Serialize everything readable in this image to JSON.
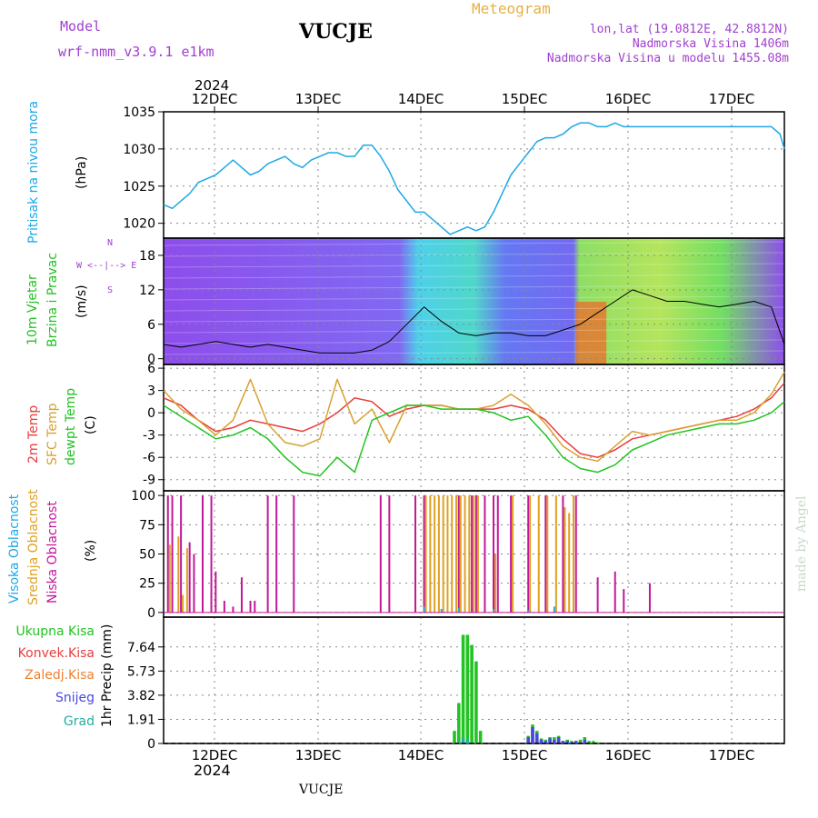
{
  "header": {
    "model_label": "Model",
    "model_name": "wrf-nmm_v3.9.1  e1km",
    "station": "VUCJE",
    "meteogram": "Meteogram",
    "coords": "lon,lat (19.0812E, 42.8812N)",
    "elevation": "Nadmorska Visina 1406m",
    "model_elevation": "Nadmorska Visina u modelu 1455.08m",
    "year_top": "2024",
    "year_bottom": "2024",
    "footer_station": "VUCJE",
    "credit": "made by Angel"
  },
  "colors": {
    "pressure": "#1ea8e6",
    "temp2m": "#e83c3c",
    "sfc_temp": "#d9a030",
    "dewpoint": "#22c322",
    "high_cloud": "#1ea8e6",
    "mid_cloud": "#e0a020",
    "low_cloud": "#c2189a",
    "total_precip": "#22c322",
    "conv_precip": "#e83c3c",
    "frz_precip": "#f08030",
    "snow": "#4848e0",
    "graupel": "#20b0a0",
    "wind_line": "#000000"
  },
  "panels": {
    "pressure": {
      "labels": [
        "Pritisak na nivou mora",
        "(hPa)"
      ],
      "yticks": [
        "1035",
        "1030",
        "1025",
        "1020"
      ]
    },
    "wind": {
      "labels": [
        "10m Vjetar",
        "Brzina i Pravac",
        "(m/s)"
      ],
      "legend": [
        "N",
        "W  <--|-->  E",
        "S"
      ],
      "yticks": [
        "18",
        "12",
        "6",
        "0"
      ]
    },
    "temp": {
      "labels": [
        "2m Temp",
        "SFC Temp",
        "dewpt Temp",
        "(C)"
      ],
      "yticks": [
        "6",
        "3",
        "0",
        "-3",
        "-6",
        "-9"
      ]
    },
    "cloud": {
      "labels": [
        "Visoka Oblacnost",
        "Srednja Oblacnost",
        "Niska Oblacnost",
        "(%)"
      ],
      "yticks": [
        "100",
        "75",
        "50",
        "25",
        "0"
      ]
    },
    "precip": {
      "legend": [
        "Ukupna Kisa",
        "Konvek.Kisa",
        "Zaledj.Kisa",
        "Snijeg",
        "Grad"
      ],
      "ylabel": "1hr Precip (mm)",
      "yticks": [
        "7.64",
        "5.73",
        "3.82",
        "1.91",
        "0"
      ]
    }
  },
  "xaxis": {
    "days": [
      "12DEC",
      "13DEC",
      "14DEC",
      "15DEC",
      "16DEC",
      "17DEC"
    ]
  },
  "chart_data": [
    {
      "type": "line",
      "series": [
        {
          "name": "Pritisak na nivou mora",
          "x_hours": [
            0,
            2,
            4,
            6,
            8,
            10,
            12,
            14,
            16,
            18,
            20,
            22,
            24,
            26,
            28,
            30,
            32,
            34,
            36,
            38,
            40,
            42,
            44,
            46,
            48,
            50,
            52,
            54,
            56,
            58,
            60,
            62,
            64,
            66,
            68,
            70,
            72,
            74,
            76,
            78,
            80,
            82,
            84,
            86,
            88,
            90,
            92,
            94,
            96,
            98,
            100,
            102,
            104,
            106,
            108,
            110,
            112,
            114,
            116,
            118,
            120,
            122,
            124,
            126,
            128,
            130,
            132,
            134,
            136,
            138,
            140,
            142,
            143
          ],
          "values": [
            1022.5,
            1022.0,
            1023.0,
            1024.0,
            1025.5,
            1026.0,
            1026.5,
            1027.5,
            1028.5,
            1027.5,
            1026.5,
            1027.0,
            1028.0,
            1028.5,
            1029.0,
            1028.0,
            1027.5,
            1028.5,
            1029.0,
            1029.5,
            1029.5,
            1029.0,
            1029.0,
            1030.5,
            1030.5,
            1029.0,
            1027.0,
            1024.5,
            1023.0,
            1021.5,
            1021.5,
            1020.5,
            1019.5,
            1018.5,
            1019.0,
            1019.5,
            1019.0,
            1019.5,
            1021.5,
            1024.0,
            1026.5,
            1028.0,
            1029.5,
            1031.0,
            1031.5,
            1031.5,
            1032.0,
            1033.0,
            1033.5,
            1033.5,
            1033.0,
            1033.0,
            1033.5,
            1033.0,
            1033.0,
            1033.0,
            1033.0,
            1033.0,
            1033.0,
            1033.0,
            1033.0,
            1033.0,
            1033.0,
            1033.0,
            1033.0,
            1033.0,
            1033.0,
            1033.0,
            1033.0,
            1033.0,
            1033.0,
            1032.0,
            1030.0
          ]
        }
      ],
      "ylim": [
        1018,
        1035
      ]
    },
    {
      "type": "line",
      "series": [
        {
          "name": "Brzina i Pravac",
          "x_hours": [
            0,
            4,
            8,
            12,
            16,
            20,
            24,
            28,
            32,
            36,
            40,
            44,
            48,
            52,
            56,
            60,
            64,
            68,
            72,
            76,
            80,
            84,
            88,
            92,
            96,
            100,
            104,
            108,
            112,
            116,
            120,
            124,
            128,
            132,
            136,
            140,
            143
          ],
          "values": [
            2.5,
            2.0,
            2.5,
            3.0,
            2.5,
            2.0,
            2.5,
            2.0,
            1.5,
            1.0,
            1.0,
            1.0,
            1.5,
            3.0,
            6.0,
            9.0,
            6.5,
            4.5,
            4.0,
            4.5,
            4.5,
            4.0,
            4.0,
            5.0,
            6.0,
            8.0,
            10.0,
            12.0,
            11.0,
            10.0,
            10.0,
            9.5,
            9.0,
            9.5,
            10.0,
            9.0,
            2.5
          ]
        }
      ],
      "ylim": [
        0,
        21
      ]
    },
    {
      "type": "line",
      "x_hours": [
        0,
        4,
        8,
        12,
        16,
        20,
        24,
        28,
        32,
        36,
        40,
        44,
        48,
        52,
        56,
        60,
        64,
        68,
        72,
        76,
        80,
        84,
        88,
        92,
        96,
        100,
        104,
        108,
        112,
        116,
        120,
        124,
        128,
        132,
        136,
        140,
        143
      ],
      "series": [
        {
          "name": "2m Temp",
          "values": [
            2.0,
            1.0,
            -1.0,
            -2.5,
            -2.0,
            -1.0,
            -1.5,
            -2.0,
            -2.5,
            -1.5,
            0.0,
            2.0,
            1.5,
            -0.5,
            0.5,
            1.0,
            1.0,
            0.5,
            0.5,
            0.5,
            1.0,
            0.5,
            -1.0,
            -3.5,
            -5.5,
            -6.0,
            -5.0,
            -3.5,
            -3.0,
            -2.5,
            -2.0,
            -1.5,
            -1.0,
            -0.5,
            0.5,
            2.0,
            4.0
          ]
        },
        {
          "name": "SFC Temp",
          "values": [
            3.0,
            0.5,
            -1.0,
            -3.0,
            -1.0,
            4.5,
            -1.5,
            -4.0,
            -4.5,
            -3.5,
            4.5,
            -1.5,
            0.5,
            -4.0,
            1.0,
            1.0,
            1.0,
            0.5,
            0.5,
            1.0,
            2.5,
            1.0,
            -1.5,
            -4.5,
            -6.0,
            -6.5,
            -4.5,
            -2.5,
            -3.0,
            -2.5,
            -2.0,
            -1.5,
            -1.0,
            -1.0,
            0.0,
            2.5,
            5.5
          ]
        },
        {
          "name": "dewpt Temp",
          "values": [
            1.0,
            -0.5,
            -2.0,
            -3.5,
            -3.0,
            -2.0,
            -3.5,
            -6.0,
            -8.0,
            -8.5,
            -6.0,
            -8.0,
            -1.0,
            0.0,
            1.0,
            1.0,
            0.5,
            0.5,
            0.5,
            0.0,
            -1.0,
            -0.5,
            -3.0,
            -6.0,
            -7.5,
            -8.0,
            -7.0,
            -5.0,
            -4.0,
            -3.0,
            -2.5,
            -2.0,
            -1.5,
            -1.5,
            -1.0,
            0.0,
            1.5
          ]
        }
      ],
      "ylim": [
        -10,
        6
      ]
    },
    {
      "type": "bar",
      "ylim": [
        0,
        100
      ],
      "series": [
        {
          "name": "Niska Oblacnost",
          "x_hours": [
            1,
            2,
            4,
            6,
            7,
            9,
            11,
            12,
            14,
            16,
            18,
            20,
            21,
            24,
            26,
            30,
            50,
            52,
            58,
            60,
            68,
            71,
            72,
            74,
            76,
            77,
            80,
            84,
            88,
            92,
            95,
            100,
            104,
            106,
            112,
            114
          ],
          "values": [
            100,
            100,
            100,
            60,
            50,
            100,
            100,
            35,
            10,
            5,
            30,
            10,
            10,
            100,
            100,
            100,
            100,
            100,
            100,
            100,
            100,
            100,
            100,
            100,
            100,
            100,
            100,
            100,
            100,
            100,
            100,
            30,
            35,
            20,
            25,
            0
          ]
        },
        {
          "name": "Srednja Oblacnost",
          "x_hours": [
            1,
            3,
            4,
            5,
            60,
            61,
            62,
            63,
            64,
            65,
            66,
            67,
            68,
            69,
            70,
            71,
            72,
            76,
            80,
            84,
            86,
            88,
            90,
            92,
            93,
            94
          ],
          "values": [
            58,
            65,
            15,
            55,
            100,
            100,
            100,
            100,
            100,
            100,
            100,
            100,
            100,
            100,
            100,
            100,
            100,
            50,
            100,
            100,
            100,
            100,
            100,
            90,
            85,
            100
          ]
        },
        {
          "name": "Visoka Oblacnost",
          "x_hours": [
            60,
            64,
            68,
            76,
            84,
            90
          ],
          "values": [
            5,
            3,
            4,
            3,
            2,
            5
          ]
        }
      ]
    },
    {
      "type": "bar",
      "ylim": [
        0,
        9.5
      ],
      "series": [
        {
          "name": "Ukupna Kisa",
          "x_hours": [
            67,
            68,
            69,
            70,
            71,
            72,
            73,
            84,
            85,
            86,
            87,
            88,
            89,
            90,
            91,
            92,
            93,
            94,
            95,
            96,
            97,
            98,
            99,
            100
          ],
          "values": [
            1.0,
            3.2,
            8.6,
            8.6,
            7.8,
            6.5,
            1.0,
            0.6,
            1.5,
            1.0,
            0.4,
            0.3,
            0.5,
            0.5,
            0.6,
            0.2,
            0.3,
            0.2,
            0.2,
            0.3,
            0.5,
            0.2,
            0.2,
            0.1
          ]
        },
        {
          "name": "Snijeg",
          "x_hours": [
            84,
            85,
            86,
            87,
            88,
            89,
            90,
            91,
            92,
            93,
            94,
            95,
            96,
            97
          ],
          "values": [
            0.5,
            1.3,
            0.8,
            0.3,
            0.2,
            0.4,
            0.3,
            0.5,
            0.2,
            0.2,
            0.1,
            0.2,
            0.1,
            0.3
          ]
        },
        {
          "name": "Grad",
          "x_hours": [
            68,
            69,
            70
          ],
          "values": [
            0.2,
            0.5,
            0.3
          ]
        }
      ]
    }
  ]
}
